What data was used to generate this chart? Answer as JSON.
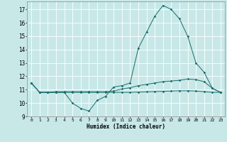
{
  "xlabel": "Humidex (Indice chaleur)",
  "x_values": [
    0,
    1,
    2,
    3,
    4,
    5,
    6,
    7,
    8,
    9,
    10,
    11,
    12,
    13,
    14,
    15,
    16,
    17,
    18,
    19,
    20,
    21,
    22,
    23
  ],
  "y_main": [
    11.5,
    10.8,
    10.8,
    10.8,
    10.8,
    10.0,
    9.6,
    9.4,
    10.2,
    10.5,
    11.2,
    11.3,
    11.5,
    14.1,
    15.3,
    16.5,
    17.3,
    17.0,
    16.3,
    15.0,
    13.0,
    12.3,
    11.1,
    10.8
  ],
  "y_upper": [
    11.5,
    10.8,
    10.8,
    10.85,
    10.85,
    10.85,
    10.85,
    10.85,
    10.85,
    10.85,
    10.9,
    11.05,
    11.15,
    11.3,
    11.4,
    11.5,
    11.6,
    11.65,
    11.7,
    11.8,
    11.75,
    11.6,
    11.1,
    10.8
  ],
  "y_lower": [
    11.5,
    10.8,
    10.8,
    10.8,
    10.8,
    10.8,
    10.8,
    10.8,
    10.8,
    10.8,
    10.8,
    10.8,
    10.8,
    10.82,
    10.84,
    10.86,
    10.88,
    10.9,
    10.92,
    10.92,
    10.9,
    10.85,
    10.8,
    10.8
  ],
  "bg_color": "#c8e8e8",
  "grid_color": "#ffffff",
  "line_color": "#1a6b6b",
  "ylim": [
    9.0,
    17.6
  ],
  "yticks": [
    9,
    10,
    11,
    12,
    13,
    14,
    15,
    16,
    17
  ],
  "xlim": [
    -0.5,
    23.5
  ]
}
